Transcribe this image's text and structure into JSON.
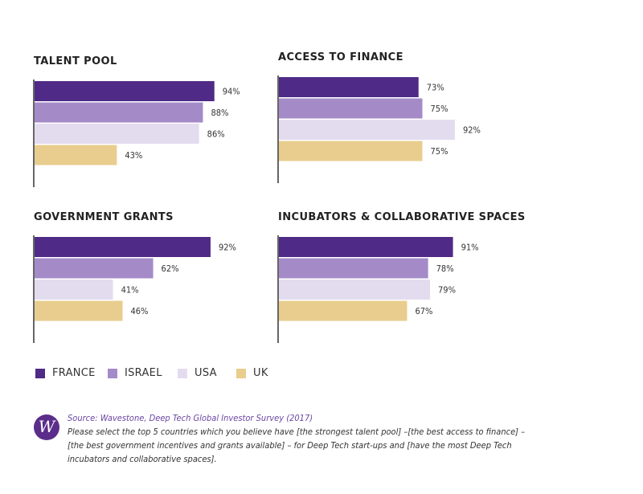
{
  "chart_data": [
    {
      "type": "bar",
      "orientation": "horizontal",
      "title": "TALENT POOL",
      "categories": [
        "FRANCE",
        "ISRAEL",
        "USA",
        "UK"
      ],
      "values": [
        94,
        88,
        86,
        43
      ],
      "labels": [
        "94%",
        "88%",
        "86%",
        "43%"
      ],
      "xlim": [
        0,
        100
      ]
    },
    {
      "type": "bar",
      "orientation": "horizontal",
      "title": "ACCESS TO FINANCE",
      "categories": [
        "FRANCE",
        "ISRAEL",
        "USA",
        "UK"
      ],
      "values": [
        73,
        75,
        92,
        75
      ],
      "labels": [
        "73%",
        "75%",
        "92%",
        "75%"
      ],
      "xlim": [
        0,
        100
      ]
    },
    {
      "type": "bar",
      "orientation": "horizontal",
      "title": "GOVERNMENT GRANTS",
      "categories": [
        "FRANCE",
        "ISRAEL",
        "USA",
        "UK"
      ],
      "values": [
        92,
        62,
        41,
        46
      ],
      "labels": [
        "92%",
        "62%",
        "41%",
        "46%"
      ],
      "xlim": [
        0,
        100
      ]
    },
    {
      "type": "bar",
      "orientation": "horizontal",
      "title": "INCUBATORS & COLLABORATIVE SPACES",
      "categories": [
        "FRANCE",
        "ISRAEL",
        "USA",
        "UK"
      ],
      "values": [
        91,
        78,
        79,
        67
      ],
      "labels": [
        "91%",
        "78%",
        "79%",
        "67%"
      ],
      "xlim": [
        0,
        100
      ]
    }
  ],
  "legend": [
    {
      "label": "FRANCE",
      "color": "#4f2a86"
    },
    {
      "label": "ISRAEL",
      "color": "#a48bc8"
    },
    {
      "label": "USA",
      "color": "#e3dcef"
    },
    {
      "label": "UK",
      "color": "#e8cd8e"
    }
  ],
  "colors": {
    "FRANCE": "#4f2a86",
    "ISRAEL": "#a48bc8",
    "USA": "#e3dcef",
    "UK": "#e8cd8e",
    "axis": "#333333",
    "accent": "#6b46a3"
  },
  "source": {
    "logo_letter": "W",
    "label": "Source:",
    "name": "Wavestone, Deep Tech Global Investor Survey (2017)",
    "lines": [
      "Please select the top 5 countries which you believe have [the strongest talent pool] –[the best access to finance] –",
      "[the best government incentives and grants available] – for Deep Tech start-ups and [have the most Deep Tech",
      "incubators and collaborative spaces]."
    ]
  }
}
